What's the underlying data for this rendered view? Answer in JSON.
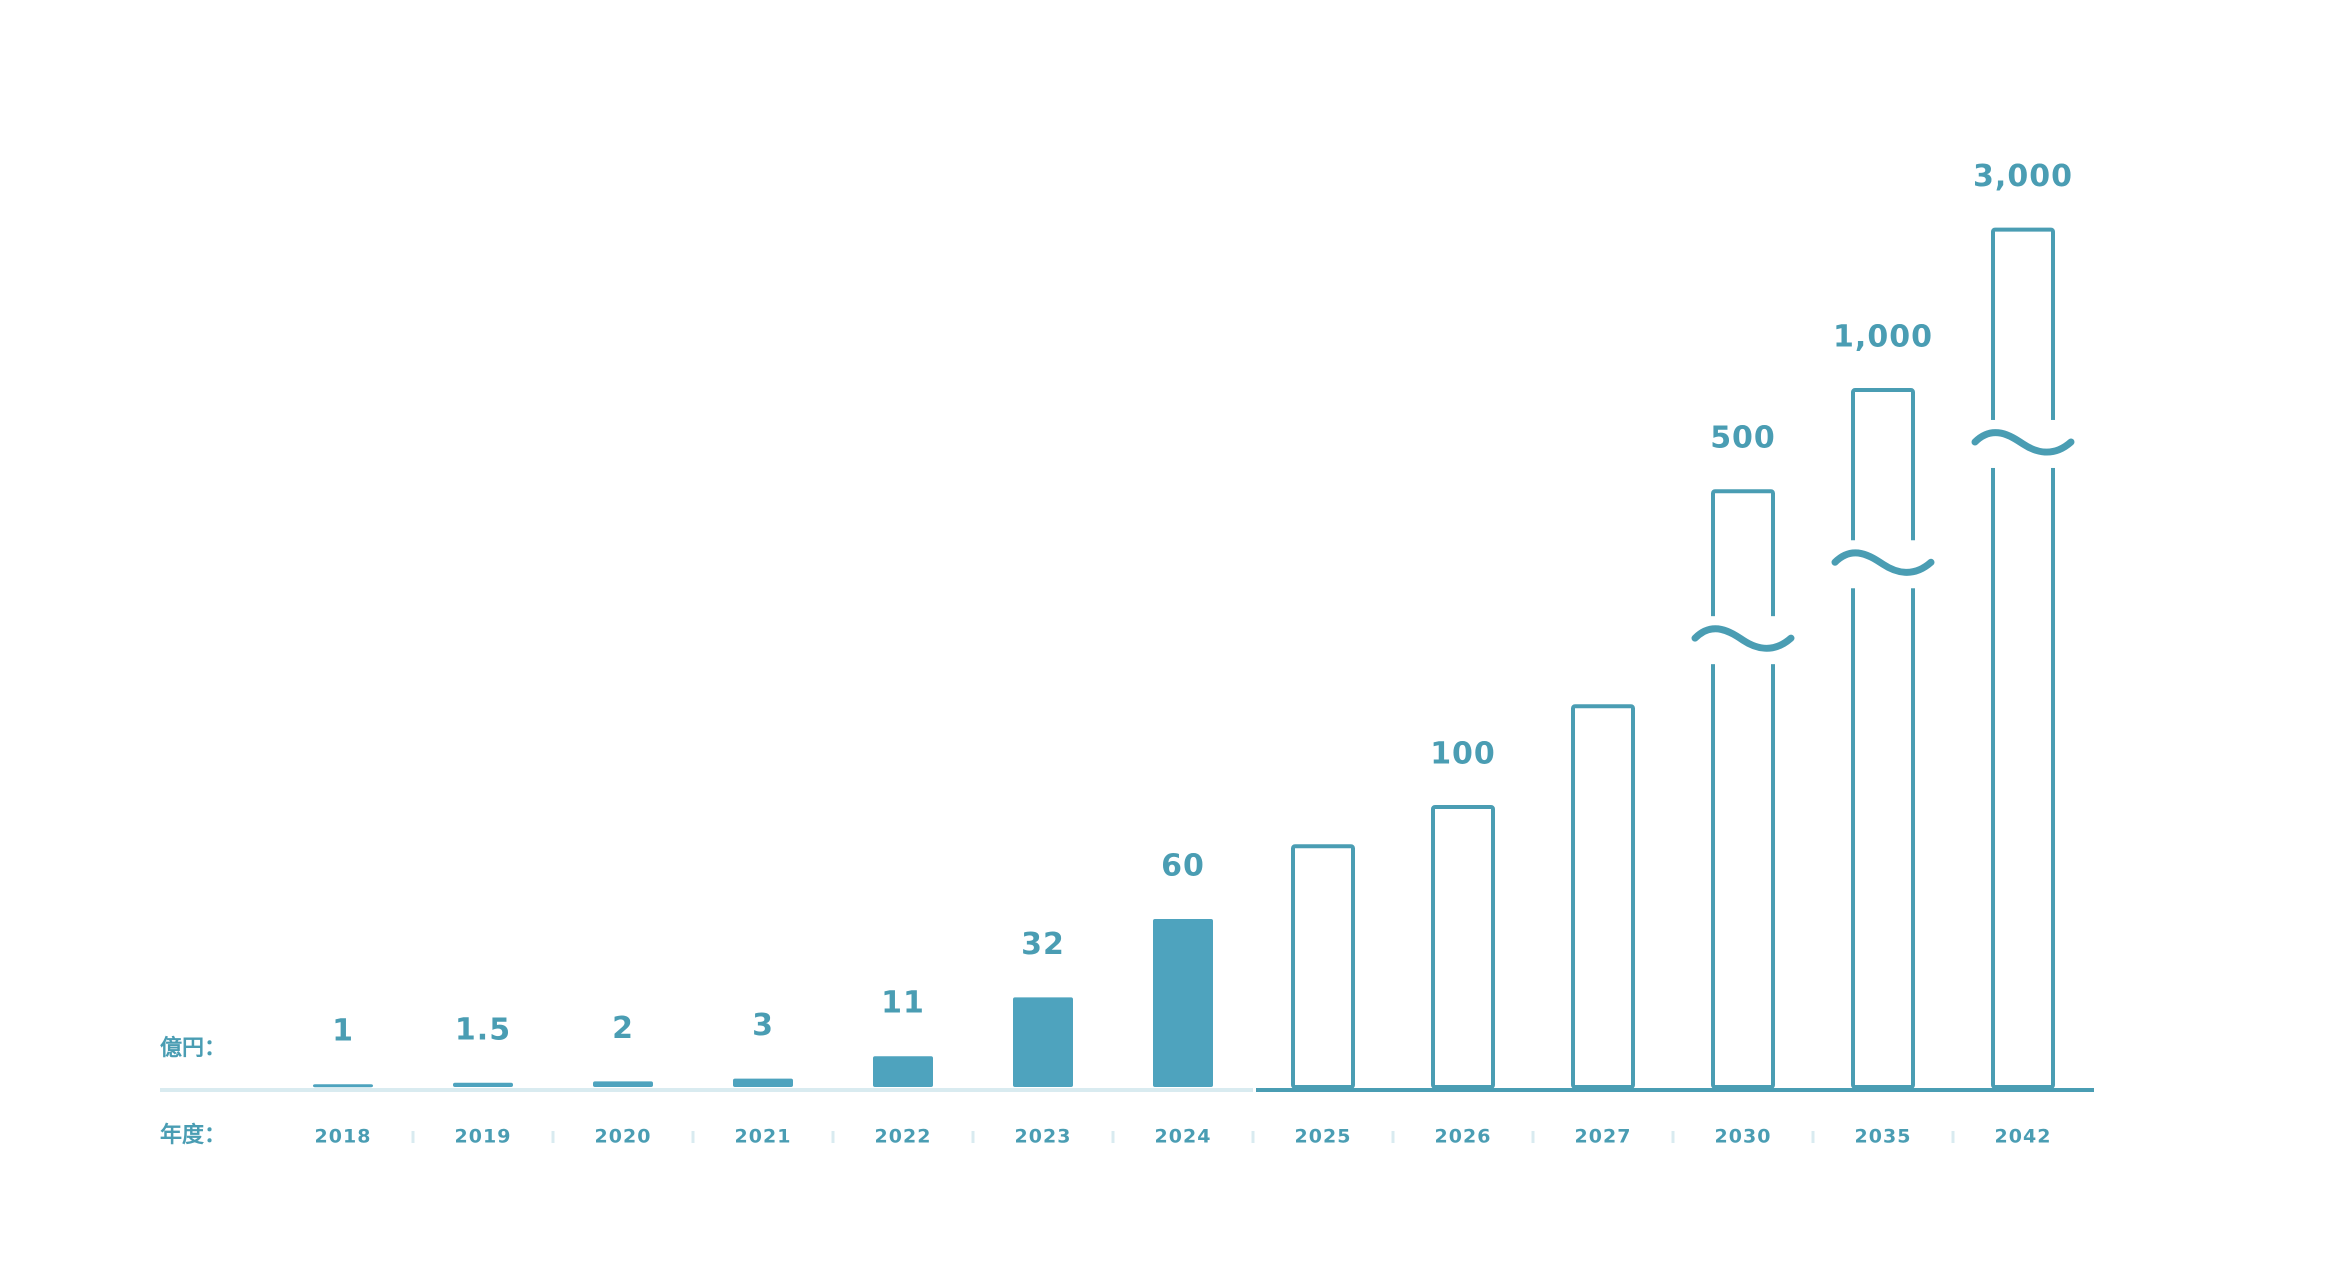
{
  "chart_data": {
    "type": "bar",
    "y_label": "億円：",
    "x_label": "年度：",
    "categories": [
      "2018",
      "2019",
      "2020",
      "2021",
      "2022",
      "2023",
      "2024",
      "2025",
      "2026",
      "2027",
      "2030",
      "2035",
      "2042"
    ],
    "values": [
      1,
      1.5,
      2,
      3,
      11,
      32,
      60,
      86,
      100,
      136,
      500,
      1000,
      3000
    ],
    "value_labels": [
      "1",
      "1.5",
      "2",
      "3",
      "11",
      "32",
      "60",
      null,
      "100",
      null,
      "500",
      "1,000",
      "3,000"
    ],
    "bar_fill": [
      "#4ea3be",
      "#4ea3be",
      "#4ea3be",
      "#4ea3be",
      "#4ea3be",
      "#4ea3be",
      "#4ea3be",
      "none",
      "none",
      "none",
      "none",
      "none",
      "none"
    ],
    "color": "#4a9db3",
    "ylim": [
      0,
      150
    ]
  }
}
